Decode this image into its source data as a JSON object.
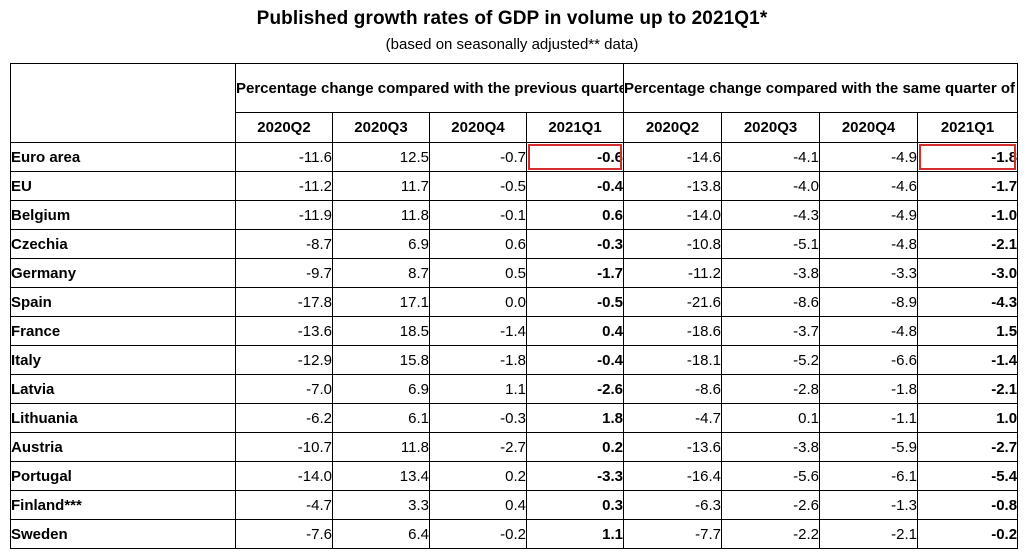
{
  "title": "Published growth rates of GDP in volume up to 2021Q1*",
  "subtitle": "(based on seasonally adjusted** data)",
  "highlight_color": "#d62d2d",
  "table": {
    "group_headers": [
      "Percentage change compared with the previous quarter",
      "Percentage change compared with the same quarter of the previous year"
    ],
    "quarters": [
      "2020Q2",
      "2020Q3",
      "2020Q4",
      "2021Q1",
      "2020Q2",
      "2020Q3",
      "2020Q4",
      "2021Q1"
    ],
    "rows": [
      {
        "country": "Euro area",
        "values": [
          "-11.6",
          "12.5",
          "-0.7",
          "-0.6",
          "-14.6",
          "-4.1",
          "-4.9",
          "-1.8"
        ],
        "highlighted": [
          3,
          7
        ]
      },
      {
        "country": "EU",
        "values": [
          "-11.2",
          "11.7",
          "-0.5",
          "-0.4",
          "-13.8",
          "-4.0",
          "-4.6",
          "-1.7"
        ]
      },
      {
        "country": "Belgium",
        "values": [
          "-11.9",
          "11.8",
          "-0.1",
          "0.6",
          "-14.0",
          "-4.3",
          "-4.9",
          "-1.0"
        ]
      },
      {
        "country": "Czechia",
        "values": [
          "-8.7",
          "6.9",
          "0.6",
          "-0.3",
          "-10.8",
          "-5.1",
          "-4.8",
          "-2.1"
        ]
      },
      {
        "country": "Germany",
        "values": [
          "-9.7",
          "8.7",
          "0.5",
          "-1.7",
          "-11.2",
          "-3.8",
          "-3.3",
          "-3.0"
        ]
      },
      {
        "country": "Spain",
        "values": [
          "-17.8",
          "17.1",
          "0.0",
          "-0.5",
          "-21.6",
          "-8.6",
          "-8.9",
          "-4.3"
        ]
      },
      {
        "country": "France",
        "values": [
          "-13.6",
          "18.5",
          "-1.4",
          "0.4",
          "-18.6",
          "-3.7",
          "-4.8",
          "1.5"
        ]
      },
      {
        "country": "Italy",
        "values": [
          "-12.9",
          "15.8",
          "-1.8",
          "-0.4",
          "-18.1",
          "-5.2",
          "-6.6",
          "-1.4"
        ]
      },
      {
        "country": "Latvia",
        "values": [
          "-7.0",
          "6.9",
          "1.1",
          "-2.6",
          "-8.6",
          "-2.8",
          "-1.8",
          "-2.1"
        ]
      },
      {
        "country": "Lithuania",
        "values": [
          "-6.2",
          "6.1",
          "-0.3",
          "1.8",
          "-4.7",
          "0.1",
          "-1.1",
          "1.0"
        ]
      },
      {
        "country": "Austria",
        "values": [
          "-10.7",
          "11.8",
          "-2.7",
          "0.2",
          "-13.6",
          "-3.8",
          "-5.9",
          "-2.7"
        ]
      },
      {
        "country": "Portugal",
        "values": [
          "-14.0",
          "13.4",
          "0.2",
          "-3.3",
          "-16.4",
          "-5.6",
          "-6.1",
          "-5.4"
        ]
      },
      {
        "country": "Finland***",
        "values": [
          "-4.7",
          "3.3",
          "0.4",
          "0.3",
          "-6.3",
          "-2.6",
          "-1.3",
          "-0.8"
        ]
      },
      {
        "country": "Sweden",
        "values": [
          "-7.6",
          "6.4",
          "-0.2",
          "1.1",
          "-7.7",
          "-2.2",
          "-2.1",
          "-0.2"
        ]
      }
    ]
  }
}
